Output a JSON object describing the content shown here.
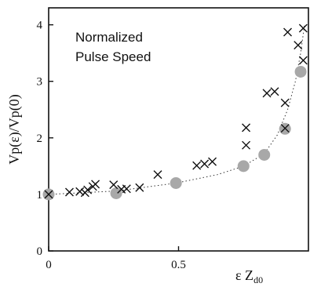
{
  "chart_data": {
    "type": "scatter",
    "annotation": [
      "Normalized",
      "Pulse Speed"
    ],
    "xlabel": "ε Z",
    "xlabel_sub": "d0",
    "ylabel": "Vp(ε)/Vp(0)",
    "xlim": [
      0,
      1.0
    ],
    "ylim": [
      0,
      4.3
    ],
    "x_ticks": [
      0,
      0.5
    ],
    "x_tick_labels": [
      "0",
      "0.5"
    ],
    "y_ticks": [
      0,
      1,
      2,
      3,
      4
    ],
    "y_tick_labels": [
      "0",
      "1",
      "2",
      "3",
      "4"
    ],
    "grid": false,
    "series": [
      {
        "marker": "x",
        "color": "#111111",
        "points": [
          [
            0.0,
            1.0
          ],
          [
            0.08,
            1.04
          ],
          [
            0.12,
            1.05
          ],
          [
            0.14,
            1.03
          ],
          [
            0.15,
            1.08
          ],
          [
            0.17,
            1.14
          ],
          [
            0.18,
            1.18
          ],
          [
            0.25,
            1.17
          ],
          [
            0.28,
            1.09
          ],
          [
            0.3,
            1.1
          ],
          [
            0.35,
            1.12
          ],
          [
            0.42,
            1.35
          ],
          [
            0.57,
            1.51
          ],
          [
            0.6,
            1.54
          ],
          [
            0.63,
            1.58
          ],
          [
            0.76,
            1.87
          ],
          [
            0.76,
            2.18
          ],
          [
            0.84,
            2.79
          ],
          [
            0.87,
            2.82
          ],
          [
            0.91,
            2.62
          ],
          [
            0.92,
            3.87
          ],
          [
            0.96,
            3.64
          ],
          [
            0.91,
            2.17
          ],
          [
            0.98,
            3.94
          ],
          [
            0.98,
            3.37
          ]
        ]
      },
      {
        "marker": "circle",
        "color": "#a8a8a8",
        "points": [
          [
            0.0,
            1.0
          ],
          [
            0.26,
            1.02
          ],
          [
            0.49,
            1.2
          ],
          [
            0.75,
            1.5
          ],
          [
            0.83,
            1.7
          ],
          [
            0.91,
            2.16
          ],
          [
            0.97,
            3.17
          ]
        ]
      }
    ],
    "trend_line": {
      "style": "dotted",
      "points": [
        [
          0.0,
          1.0
        ],
        [
          0.26,
          1.06
        ],
        [
          0.49,
          1.2
        ],
        [
          0.65,
          1.35
        ],
        [
          0.75,
          1.5
        ],
        [
          0.83,
          1.72
        ],
        [
          0.88,
          2.05
        ],
        [
          0.92,
          2.5
        ],
        [
          0.95,
          3.0
        ],
        [
          0.97,
          3.5
        ],
        [
          0.985,
          4.0
        ]
      ]
    }
  }
}
